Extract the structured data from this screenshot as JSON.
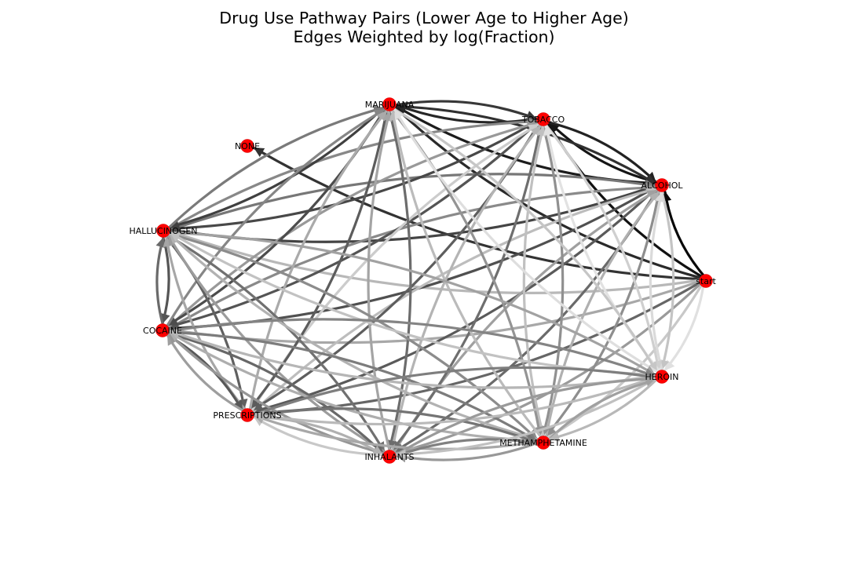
{
  "title": {
    "line1": "Drug Use Pathway Pairs (Lower Age to Higher Age)",
    "line2": "Edges Weighted by log(Fraction)"
  },
  "nodes": [
    {
      "id": "MARIJUANA",
      "label": "MARIJUANA"
    },
    {
      "id": "TOBACCO",
      "label": "TOBACCO"
    },
    {
      "id": "NONE",
      "label": "NONE"
    },
    {
      "id": "ALCOHOL",
      "label": "ALCOHOL"
    },
    {
      "id": "HALLUCINOGEN",
      "label": "HALLUCINOGEN"
    },
    {
      "id": "start",
      "label": "start"
    },
    {
      "id": "COCAINE",
      "label": "COCAINE"
    },
    {
      "id": "HEROIN",
      "label": "HEROIN"
    },
    {
      "id": "PRESCRIPTIONS",
      "label": "PRESCRIPTIONS"
    },
    {
      "id": "METHAMPHETAMINE",
      "label": "METHAMPHETAMINE"
    },
    {
      "id": "INHALANTS",
      "label": "INHALANTS"
    }
  ],
  "edges": [
    {
      "from": "start",
      "to": "ALCOHOL",
      "shade": "#080808"
    },
    {
      "from": "start",
      "to": "TOBACCO",
      "shade": "#111111"
    },
    {
      "from": "start",
      "to": "MARIJUANA",
      "shade": "#2a2a2a"
    },
    {
      "from": "start",
      "to": "NONE",
      "shade": "#333333"
    },
    {
      "from": "start",
      "to": "HALLUCINOGEN",
      "shade": "#b8b8b8"
    },
    {
      "from": "start",
      "to": "COCAINE",
      "shade": "#a8a8a8"
    },
    {
      "from": "start",
      "to": "PRESCRIPTIONS",
      "shade": "#666666"
    },
    {
      "from": "start",
      "to": "INHALANTS",
      "shade": "#9a9a9a"
    },
    {
      "from": "start",
      "to": "HEROIN",
      "shade": "#e0e0e0"
    },
    {
      "from": "start",
      "to": "METHAMPHETAMINE",
      "shade": "#c8c8c8"
    },
    {
      "from": "ALCOHOL",
      "to": "TOBACCO",
      "shade": "#151515"
    },
    {
      "from": "TOBACCO",
      "to": "ALCOHOL",
      "shade": "#222222"
    },
    {
      "from": "ALCOHOL",
      "to": "MARIJUANA",
      "shade": "#1c1c1c"
    },
    {
      "from": "MARIJUANA",
      "to": "ALCOHOL",
      "shade": "#303030"
    },
    {
      "from": "TOBACCO",
      "to": "MARIJUANA",
      "shade": "#262626"
    },
    {
      "from": "MARIJUANA",
      "to": "TOBACCO",
      "shade": "#383838"
    },
    {
      "from": "ALCOHOL",
      "to": "HALLUCINOGEN",
      "shade": "#444444"
    },
    {
      "from": "HALLUCINOGEN",
      "to": "ALCOHOL",
      "shade": "#777777"
    },
    {
      "from": "ALCOHOL",
      "to": "COCAINE",
      "shade": "#505050"
    },
    {
      "from": "COCAINE",
      "to": "ALCOHOL",
      "shade": "#8a8a8a"
    },
    {
      "from": "ALCOHOL",
      "to": "PRESCRIPTIONS",
      "shade": "#5a5a5a"
    },
    {
      "from": "PRESCRIPTIONS",
      "to": "ALCOHOL",
      "shade": "#bdbdbd"
    },
    {
      "from": "ALCOHOL",
      "to": "INHALANTS",
      "shade": "#6a6a6a"
    },
    {
      "from": "INHALANTS",
      "to": "ALCOHOL",
      "shade": "#a0a0a0"
    },
    {
      "from": "ALCOHOL",
      "to": "METHAMPHETAMINE",
      "shade": "#8e8e8e"
    },
    {
      "from": "METHAMPHETAMINE",
      "to": "ALCOHOL",
      "shade": "#b0b0b0"
    },
    {
      "from": "ALCOHOL",
      "to": "HEROIN",
      "shade": "#c4c4c4"
    },
    {
      "from": "HEROIN",
      "to": "ALCOHOL",
      "shade": "#dadada"
    },
    {
      "from": "TOBACCO",
      "to": "HALLUCINOGEN",
      "shade": "#484848"
    },
    {
      "from": "HALLUCINOGEN",
      "to": "TOBACCO",
      "shade": "#888888"
    },
    {
      "from": "TOBACCO",
      "to": "COCAINE",
      "shade": "#545454"
    },
    {
      "from": "COCAINE",
      "to": "TOBACCO",
      "shade": "#999999"
    },
    {
      "from": "TOBACCO",
      "to": "PRESCRIPTIONS",
      "shade": "#5e5e5e"
    },
    {
      "from": "PRESCRIPTIONS",
      "to": "TOBACCO",
      "shade": "#cccccc"
    },
    {
      "from": "TOBACCO",
      "to": "INHALANTS",
      "shade": "#6e6e6e"
    },
    {
      "from": "INHALANTS",
      "to": "TOBACCO",
      "shade": "#b4b4b4"
    },
    {
      "from": "TOBACCO",
      "to": "METHAMPHETAMINE",
      "shade": "#909090"
    },
    {
      "from": "METHAMPHETAMINE",
      "to": "TOBACCO",
      "shade": "#c0c0c0"
    },
    {
      "from": "TOBACCO",
      "to": "HEROIN",
      "shade": "#cfcfcf"
    },
    {
      "from": "HEROIN",
      "to": "TOBACCO",
      "shade": "#e2e2e2"
    },
    {
      "from": "MARIJUANA",
      "to": "HALLUCINOGEN",
      "shade": "#404040"
    },
    {
      "from": "HALLUCINOGEN",
      "to": "MARIJUANA",
      "shade": "#7a7a7a"
    },
    {
      "from": "MARIJUANA",
      "to": "COCAINE",
      "shade": "#4c4c4c"
    },
    {
      "from": "COCAINE",
      "to": "MARIJUANA",
      "shade": "#868686"
    },
    {
      "from": "MARIJUANA",
      "to": "PRESCRIPTIONS",
      "shade": "#5c5c5c"
    },
    {
      "from": "PRESCRIPTIONS",
      "to": "MARIJUANA",
      "shade": "#aaaaaa"
    },
    {
      "from": "MARIJUANA",
      "to": "INHALANTS",
      "shade": "#6c6c6c"
    },
    {
      "from": "INHALANTS",
      "to": "MARIJUANA",
      "shade": "#a4a4a4"
    },
    {
      "from": "MARIJUANA",
      "to": "METHAMPHETAMINE",
      "shade": "#949494"
    },
    {
      "from": "METHAMPHETAMINE",
      "to": "MARIJUANA",
      "shade": "#bbbbbb"
    },
    {
      "from": "MARIJUANA",
      "to": "HEROIN",
      "shade": "#c6c6c6"
    },
    {
      "from": "HEROIN",
      "to": "MARIJUANA",
      "shade": "#dedede"
    },
    {
      "from": "HALLUCINOGEN",
      "to": "COCAINE",
      "shade": "#555555"
    },
    {
      "from": "COCAINE",
      "to": "HALLUCINOGEN",
      "shade": "#6a6a6a"
    },
    {
      "from": "HALLUCINOGEN",
      "to": "PRESCRIPTIONS",
      "shade": "#606060"
    },
    {
      "from": "PRESCRIPTIONS",
      "to": "HALLUCINOGEN",
      "shade": "#a6a6a6"
    },
    {
      "from": "HALLUCINOGEN",
      "to": "INHALANTS",
      "shade": "#707070"
    },
    {
      "from": "INHALANTS",
      "to": "HALLUCINOGEN",
      "shade": "#9c9c9c"
    },
    {
      "from": "HALLUCINOGEN",
      "to": "METHAMPHETAMINE",
      "shade": "#8c8c8c"
    },
    {
      "from": "METHAMPHETAMINE",
      "to": "HALLUCINOGEN",
      "shade": "#b2b2b2"
    },
    {
      "from": "HALLUCINOGEN",
      "to": "HEROIN",
      "shade": "#a2a2a2"
    },
    {
      "from": "HEROIN",
      "to": "HALLUCINOGEN",
      "shade": "#c2c2c2"
    },
    {
      "from": "COCAINE",
      "to": "PRESCRIPTIONS",
      "shade": "#585858"
    },
    {
      "from": "PRESCRIPTIONS",
      "to": "COCAINE",
      "shade": "#9e9e9e"
    },
    {
      "from": "COCAINE",
      "to": "INHALANTS",
      "shade": "#686868"
    },
    {
      "from": "INHALANTS",
      "to": "COCAINE",
      "shade": "#969696"
    },
    {
      "from": "COCAINE",
      "to": "METHAMPHETAMINE",
      "shade": "#7c7c7c"
    },
    {
      "from": "METHAMPHETAMINE",
      "to": "COCAINE",
      "shade": "#aeaeae"
    },
    {
      "from": "COCAINE",
      "to": "HEROIN",
      "shade": "#848484"
    },
    {
      "from": "HEROIN",
      "to": "COCAINE",
      "shade": "#b6b6b6"
    },
    {
      "from": "PRESCRIPTIONS",
      "to": "INHALANTS",
      "shade": "#b0b0b0"
    },
    {
      "from": "INHALANTS",
      "to": "PRESCRIPTIONS",
      "shade": "#c8c8c8"
    },
    {
      "from": "PRESCRIPTIONS",
      "to": "METHAMPHETAMINE",
      "shade": "#747474"
    },
    {
      "from": "METHAMPHETAMINE",
      "to": "PRESCRIPTIONS",
      "shade": "#a8a8a8"
    },
    {
      "from": "PRESCRIPTIONS",
      "to": "HEROIN",
      "shade": "#7e7e7e"
    },
    {
      "from": "HEROIN",
      "to": "PRESCRIPTIONS",
      "shade": "#bababa"
    },
    {
      "from": "INHALANTS",
      "to": "METHAMPHETAMINE",
      "shade": "#808080"
    },
    {
      "from": "METHAMPHETAMINE",
      "to": "INHALANTS",
      "shade": "#989898"
    },
    {
      "from": "INHALANTS",
      "to": "HEROIN",
      "shade": "#9a9a9a"
    },
    {
      "from": "HEROIN",
      "to": "INHALANTS",
      "shade": "#c0c0c0"
    },
    {
      "from": "METHAMPHETAMINE",
      "to": "HEROIN",
      "shade": "#a0a0a0"
    },
    {
      "from": "HEROIN",
      "to": "METHAMPHETAMINE",
      "shade": "#b8b8b8"
    }
  ],
  "colors": {
    "node_fill": "#ff0000",
    "background": "#ffffff",
    "text": "#000000"
  }
}
